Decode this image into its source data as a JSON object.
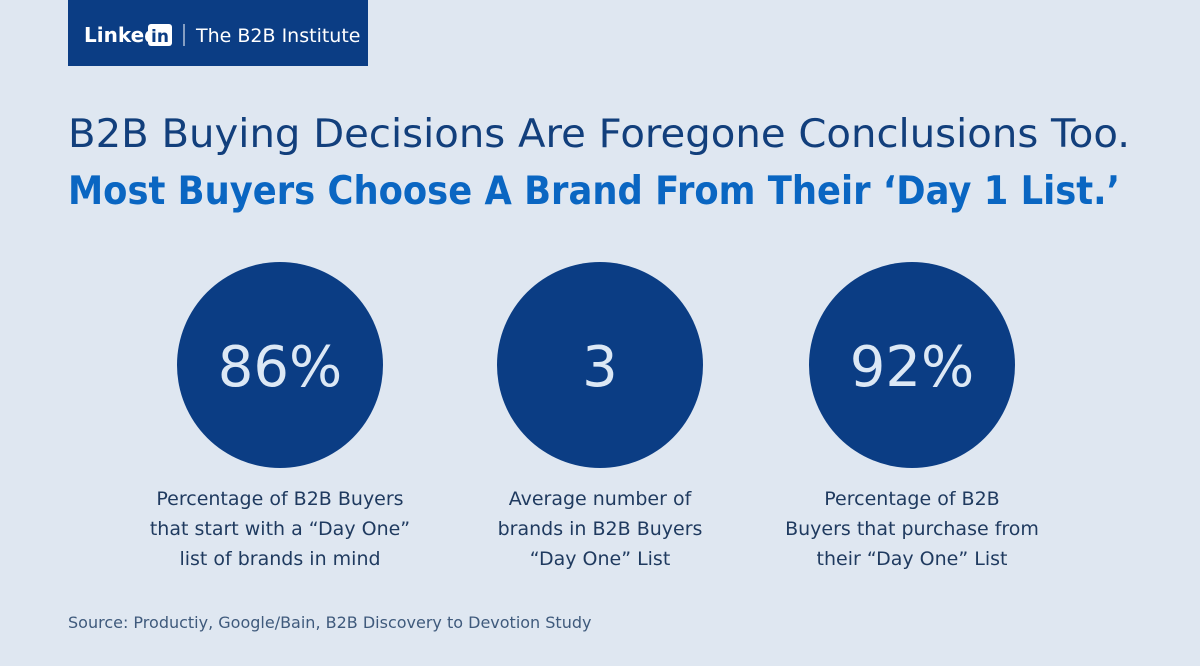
{
  "header": {
    "brand": "Linked",
    "brand_mark": "in",
    "institute": "The B2B Institute"
  },
  "title": {
    "line1": "B2B Buying Decisions Are Foregone Conclusions Too.",
    "line2": "Most Buyers Choose A Brand From Their ‘Day 1 List.’"
  },
  "stats": [
    {
      "value": "86%",
      "caption": [
        "Percentage of B2B Buyers",
        "that start with a “Day One”",
        "list of brands in mind"
      ]
    },
    {
      "value": "3",
      "caption": [
        "Average number of",
        "brands in B2B Buyers",
        "“Day One” List"
      ]
    },
    {
      "value": "92%",
      "caption": [
        "Percentage of B2B",
        "Buyers that purchase from",
        "their “Day One” List"
      ]
    }
  ],
  "source": "Source: Productiy, Google/Bain, B2B Discovery to Devotion Study"
}
